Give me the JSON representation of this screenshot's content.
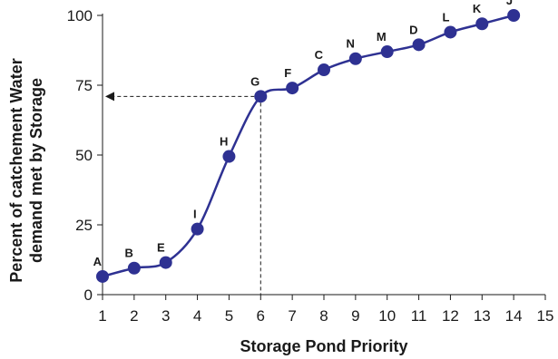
{
  "chart_data": {
    "type": "line",
    "title": "",
    "xlabel": "Storage Pond Priority",
    "ylabel_line1": "Percent of catchement Water",
    "ylabel_line2": "demand met by Storage",
    "xlim": [
      1,
      15
    ],
    "ylim": [
      0,
      100
    ],
    "x_ticks": [
      1,
      2,
      3,
      4,
      5,
      6,
      7,
      8,
      9,
      10,
      11,
      12,
      13,
      14,
      15
    ],
    "y_ticks": [
      0,
      25,
      50,
      75,
      100
    ],
    "grid": false,
    "legend": "none",
    "series": [
      {
        "color": "#2e3192",
        "points": [
          {
            "label": "A",
            "x": 1,
            "y": 6.5
          },
          {
            "label": "B",
            "x": 2,
            "y": 9.5
          },
          {
            "label": "E",
            "x": 3,
            "y": 11.5
          },
          {
            "label": "I",
            "x": 4,
            "y": 23.5
          },
          {
            "label": "H",
            "x": 5,
            "y": 49.5
          },
          {
            "label": "G",
            "x": 6,
            "y": 71
          },
          {
            "label": "F",
            "x": 7,
            "y": 74
          },
          {
            "label": "C",
            "x": 8,
            "y": 80.5
          },
          {
            "label": "N",
            "x": 9,
            "y": 84.5
          },
          {
            "label": "M",
            "x": 10,
            "y": 87
          },
          {
            "label": "D",
            "x": 11,
            "y": 89.5
          },
          {
            "label": "L",
            "x": 12,
            "y": 94
          },
          {
            "label": "K",
            "x": 13,
            "y": 97
          },
          {
            "label": "J",
            "x": 14,
            "y": 100
          }
        ]
      }
    ],
    "annotation": {
      "x": 6,
      "y": 71,
      "style": "dashed",
      "vertical_to_x_axis": true,
      "horizontal_arrow_to_y_axis": true
    }
  }
}
